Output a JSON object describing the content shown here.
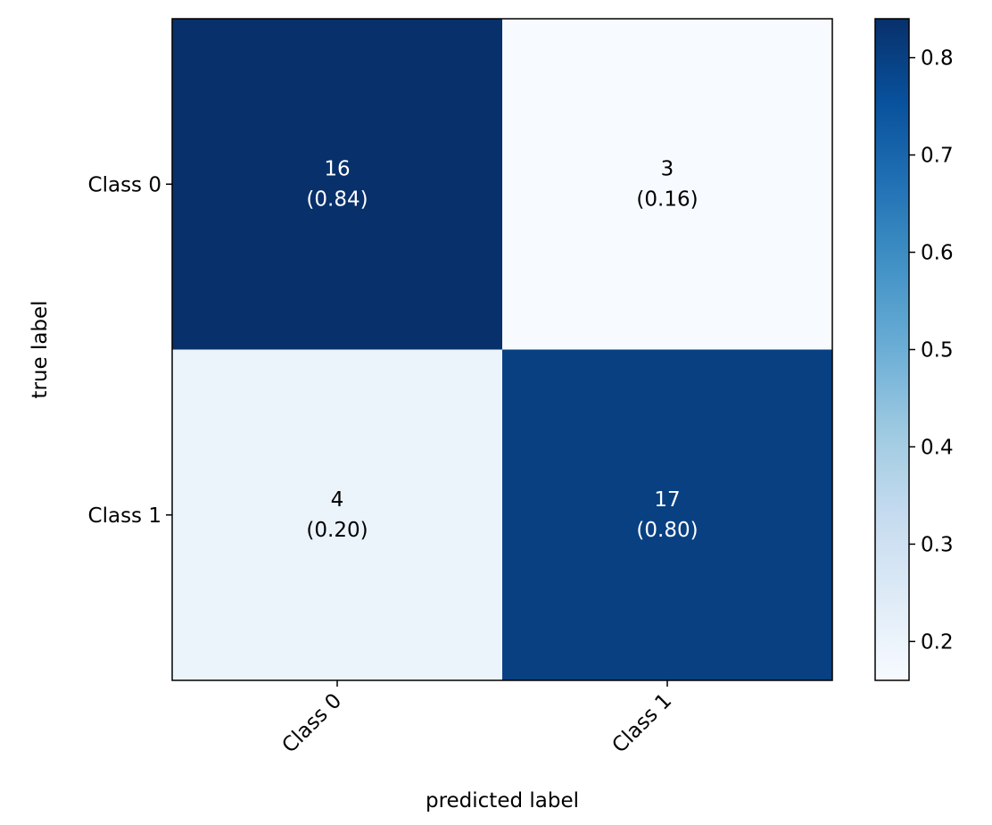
{
  "chart_data": {
    "type": "heatmap",
    "title": "",
    "xlabel": "predicted label",
    "ylabel": "true label",
    "x_categories": [
      "Class 0",
      "Class 1"
    ],
    "y_categories": [
      "Class 0",
      "Class 1"
    ],
    "counts": [
      [
        16,
        3
      ],
      [
        4,
        17
      ]
    ],
    "fractions": [
      [
        0.84,
        0.16
      ],
      [
        0.2,
        0.8
      ]
    ],
    "cell_labels": [
      [
        "16\n(0.84)",
        "3\n(0.16)"
      ],
      [
        "4\n(0.20)",
        "17\n(0.80)"
      ]
    ],
    "colormap": "Blues",
    "colorbar": {
      "range": [
        0.16,
        0.84
      ],
      "ticks": [
        0.2,
        0.3,
        0.4,
        0.5,
        0.6,
        0.7,
        0.8
      ],
      "tick_labels": [
        "0.2",
        "0.3",
        "0.4",
        "0.5",
        "0.6",
        "0.7",
        "0.8"
      ],
      "placement": "right"
    },
    "grid": false,
    "x_tick_rotation_deg": 45
  }
}
